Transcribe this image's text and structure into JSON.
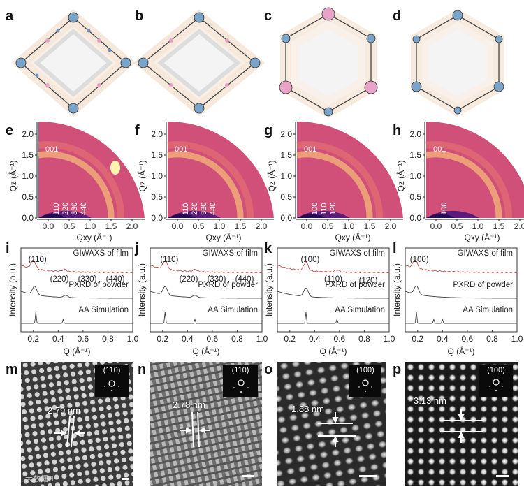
{
  "panel_letters": [
    "a",
    "b",
    "c",
    "d",
    "e",
    "f",
    "g",
    "h",
    "i",
    "j",
    "k",
    "l",
    "m",
    "n",
    "o",
    "p"
  ],
  "giwaxs": {
    "y_axis_label": "Qz (Å⁻¹)",
    "x_axis_label": "Qxy (Å⁻¹)",
    "y_ticks": [
      "0.0",
      "0.5",
      "1.0",
      "1.5",
      "2.0"
    ],
    "x_ticks": [
      "0.0",
      "0.5",
      "1.0",
      "1.5",
      "2.0"
    ],
    "label_001": "001",
    "panels": [
      {
        "letter": "e",
        "peaks": [
          "110",
          "220",
          "330",
          "440"
        ],
        "hotspot": true
      },
      {
        "letter": "f",
        "peaks": [
          "110",
          "220",
          "330",
          "440"
        ],
        "hotspot": false
      },
      {
        "letter": "g",
        "peaks": [
          "100",
          "110",
          "120"
        ],
        "hotspot": false
      },
      {
        "letter": "h",
        "peaks": [
          "100"
        ],
        "hotspot": false
      }
    ]
  },
  "chart_data": [
    {
      "type": "line",
      "panel": "i",
      "xlabel": "Q (Å⁻¹)",
      "ylabel": "Intensity (a.u.)",
      "xlim": [
        0.1,
        1.0
      ],
      "x_ticks": [
        "0.2",
        "0.4",
        "0.6",
        "0.8",
        "1.0"
      ],
      "series": [
        {
          "name": "GIWAXS of film",
          "peaks": [
            0.2,
            0.45
          ]
        },
        {
          "name": "PXRD of powder",
          "peaks": [
            0.21,
            0.46
          ]
        },
        {
          "name": "AA Simulation",
          "peaks": [
            0.22,
            0.44
          ]
        }
      ],
      "annotations": [
        "(110)",
        "(220)",
        "(330)",
        "(440)"
      ]
    },
    {
      "type": "line",
      "panel": "j",
      "xlabel": "Q (Å⁻¹)",
      "ylabel": "Intensity (a.u.)",
      "xlim": [
        0.1,
        1.0
      ],
      "x_ticks": [
        "0.2",
        "0.4",
        "0.6",
        "0.8",
        "1.0"
      ],
      "series": [
        {
          "name": "GIWAXS of film",
          "peaks": [
            0.22,
            0.46
          ]
        },
        {
          "name": "PXRD of powder",
          "peaks": [
            0.22,
            0.46
          ]
        },
        {
          "name": "AA Simulation",
          "peaks": [
            0.22,
            0.46
          ]
        }
      ],
      "annotations": [
        "(110)",
        "(220)",
        "(330)",
        "(440)"
      ]
    },
    {
      "type": "line",
      "panel": "k",
      "xlabel": "Q (Å⁻¹)",
      "ylabel": "Intensity (a.u.)",
      "xlim": [
        0.1,
        1.0
      ],
      "x_ticks": [
        "0.2",
        "0.4",
        "0.6",
        "0.8",
        "1.0"
      ],
      "series": [
        {
          "name": "GIWAXS of film",
          "peaks": [
            0.33,
            0.58
          ]
        },
        {
          "name": "PXRD of powder",
          "peaks": [
            0.33
          ]
        },
        {
          "name": "AA Simulation",
          "peaks": [
            0.33,
            0.58
          ]
        }
      ],
      "annotations": [
        "(100)",
        "(110)",
        "(120)"
      ]
    },
    {
      "type": "line",
      "panel": "l",
      "xlabel": "Q (Å⁻¹)",
      "ylabel": "Intensity (a.u.)",
      "xlim": [
        0.1,
        1.0
      ],
      "x_ticks": [
        "0.2",
        "0.4",
        "0.6",
        "0.8",
        "1.0"
      ],
      "series": [
        {
          "name": "GIWAXS of film",
          "peaks": [
            0.18
          ]
        },
        {
          "name": "PXRD of powder",
          "peaks": [
            0.19
          ]
        },
        {
          "name": "AA Simulation",
          "peaks": [
            0.19,
            0.33,
            0.4
          ]
        }
      ],
      "annotations": [
        "(100)"
      ]
    }
  ],
  "tem": {
    "panels": [
      {
        "letter": "m",
        "spacing": "2.79 nm",
        "fft_label": "(110)"
      },
      {
        "letter": "n",
        "spacing": "2.78 nm",
        "fft_label": "(110)"
      },
      {
        "letter": "o",
        "spacing": "1.88 nm",
        "fft_label": "(100)"
      },
      {
        "letter": "p",
        "spacing": "3.13 nm",
        "fft_label": "(100)"
      }
    ]
  },
  "watermark": "大数据 1"
}
